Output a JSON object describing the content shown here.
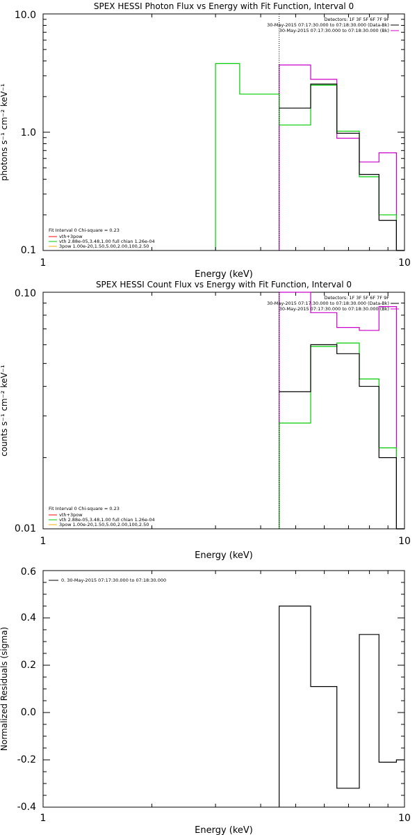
{
  "chart_data": [
    {
      "type": "line",
      "title": "SPEX HESSI Photon Flux vs Energy with Fit Function, Interval 0",
      "xlabel": "Energy (keV)",
      "ylabel": "photons s⁻¹ cm⁻² keV⁻¹",
      "xscale": "log",
      "yscale": "log",
      "xlim": [
        1,
        10
      ],
      "ylim": [
        0.1,
        10
      ],
      "xticks": [
        "1",
        "10"
      ],
      "yticks": [
        "0.1",
        "1.0",
        "10.0"
      ],
      "grid": false,
      "vline_x": 4.5,
      "legend_top": {
        "placement": "top-right",
        "lines": [
          {
            "text": "Detectors: 1F 3F 5F 6F 7F 9F",
            "color": ""
          },
          {
            "text": "30-May-2015 07:17:30.000 to 07:18:30.000 (Data-Bk)",
            "color": "#000000"
          },
          {
            "text": "30-May-2015 07:17:30.000 to 07:18:30.000 (Bk)",
            "color": "#cc00cc"
          }
        ]
      },
      "legend_bottom": {
        "placement": "bottom-left",
        "header": "Fit Interval 0   Chi-square = 0.23",
        "lines": [
          {
            "text": "vth+3pow",
            "color": "#ff0000"
          },
          {
            "text": "vth 2.88e-05,3.48,1.00  full chian 1.26e-04",
            "color": "#00cc00"
          },
          {
            "text": "3pow 1.00e-20,1.50,5.00,2.00,100,2.50",
            "color": "#ffaa00"
          }
        ]
      },
      "series": [
        {
          "color": "#cc00cc",
          "edges": [
            4.5,
            5.5,
            6.5,
            7.5,
            8.5,
            9.5,
            10
          ],
          "values": [
            3.7,
            2.8,
            0.89,
            0.56,
            0.67,
            0.1
          ],
          "drop_to_floor": true
        },
        {
          "color": "#00cc00",
          "edges": [
            3.0,
            3.5,
            4.5,
            5.5,
            6.5,
            7.5,
            8.5,
            9.5,
            10
          ],
          "values": [
            3.8,
            2.1,
            1.15,
            2.5,
            1.02,
            0.42,
            0.2,
            0.1
          ],
          "drop_to_floor": true
        },
        {
          "color": "#000000",
          "edges": [
            4.5,
            5.5,
            6.5,
            7.5,
            8.5,
            9.5,
            10
          ],
          "values": [
            1.6,
            2.55,
            0.98,
            0.44,
            0.18,
            0.1
          ],
          "drop_to_floor": false
        }
      ]
    },
    {
      "type": "line",
      "title": "SPEX HESSI Count Flux vs Energy with Fit Function, Interval 0",
      "xlabel": "Energy (keV)",
      "ylabel": "counts s⁻¹ cm⁻² keV⁻¹",
      "xscale": "log",
      "yscale": "log",
      "xlim": [
        1,
        10
      ],
      "ylim": [
        0.01,
        0.1
      ],
      "xticks": [
        "1",
        "10"
      ],
      "yticks": [
        "0.01",
        "0.10"
      ],
      "grid": false,
      "vline_x": 4.5,
      "legend_top": {
        "placement": "top-right",
        "lines": [
          {
            "text": "Detectors: 1F 3F 5F 6F 7F 9F",
            "color": ""
          },
          {
            "text": "30-May-2015 07:17:30.000 to 07:18:30.000 (Data-Bk)",
            "color": "#000000"
          },
          {
            "text": "30-May-2015 07:17:30.000 to 07:18:30.000 (Bk)",
            "color": "#cc00cc"
          }
        ]
      },
      "legend_bottom": {
        "placement": "bottom-left",
        "header": "Fit Interval 0   Chi-square = 0.23",
        "lines": [
          {
            "text": "vth+3pow",
            "color": "#ff0000"
          },
          {
            "text": "vth 2.88e-05,3.48,1.00  full chian 1.26e-04",
            "color": "#00cc00"
          },
          {
            "text": "3pow 1.00e-20,1.50,5.00,2.00,100,2.50",
            "color": "#ffaa00"
          }
        ]
      },
      "series": [
        {
          "color": "#cc00cc",
          "edges": [
            4.5,
            5.5,
            6.5,
            7.5,
            8.5,
            9.5,
            10
          ],
          "values": [
            0.1,
            0.082,
            0.071,
            0.069,
            0.087,
            0.01
          ],
          "drop_to_floor": true
        },
        {
          "color": "#00cc00",
          "edges": [
            4.5,
            5.5,
            6.5,
            7.5,
            8.5,
            9.5,
            10
          ],
          "values": [
            0.028,
            0.059,
            0.061,
            0.043,
            0.022,
            0.01
          ],
          "drop_to_floor": true
        },
        {
          "color": "#000000",
          "edges": [
            4.5,
            5.5,
            6.5,
            7.5,
            8.5,
            9.5,
            10
          ],
          "values": [
            0.038,
            0.06,
            0.055,
            0.04,
            0.02,
            0.01
          ],
          "drop_to_floor": false
        }
      ]
    },
    {
      "type": "line",
      "title": "",
      "xlabel": "Energy (keV)",
      "ylabel": "Normalized Residuals (sigma)",
      "xscale": "log",
      "yscale": "linear",
      "xlim": [
        1,
        10
      ],
      "ylim": [
        -0.4,
        0.6
      ],
      "xticks": [
        "1",
        "10"
      ],
      "yticks": [
        "-0.4",
        "-0.2",
        "0.0",
        "0.2",
        "0.4",
        "0.6"
      ],
      "grid": false,
      "legend_top": {
        "placement": "top-left",
        "lines": [
          {
            "text": "0. 30-May-2015 07:17:30.000 to 07:18:30.000",
            "color": "#000000"
          }
        ]
      },
      "series": [
        {
          "color": "#000000",
          "edges": [
            4.5,
            5.5,
            6.5,
            7.5,
            8.5,
            9.5,
            10
          ],
          "values": [
            0.45,
            0.11,
            -0.32,
            0.33,
            -0.21,
            -0.2
          ],
          "drop_to_floor": true
        }
      ]
    }
  ]
}
